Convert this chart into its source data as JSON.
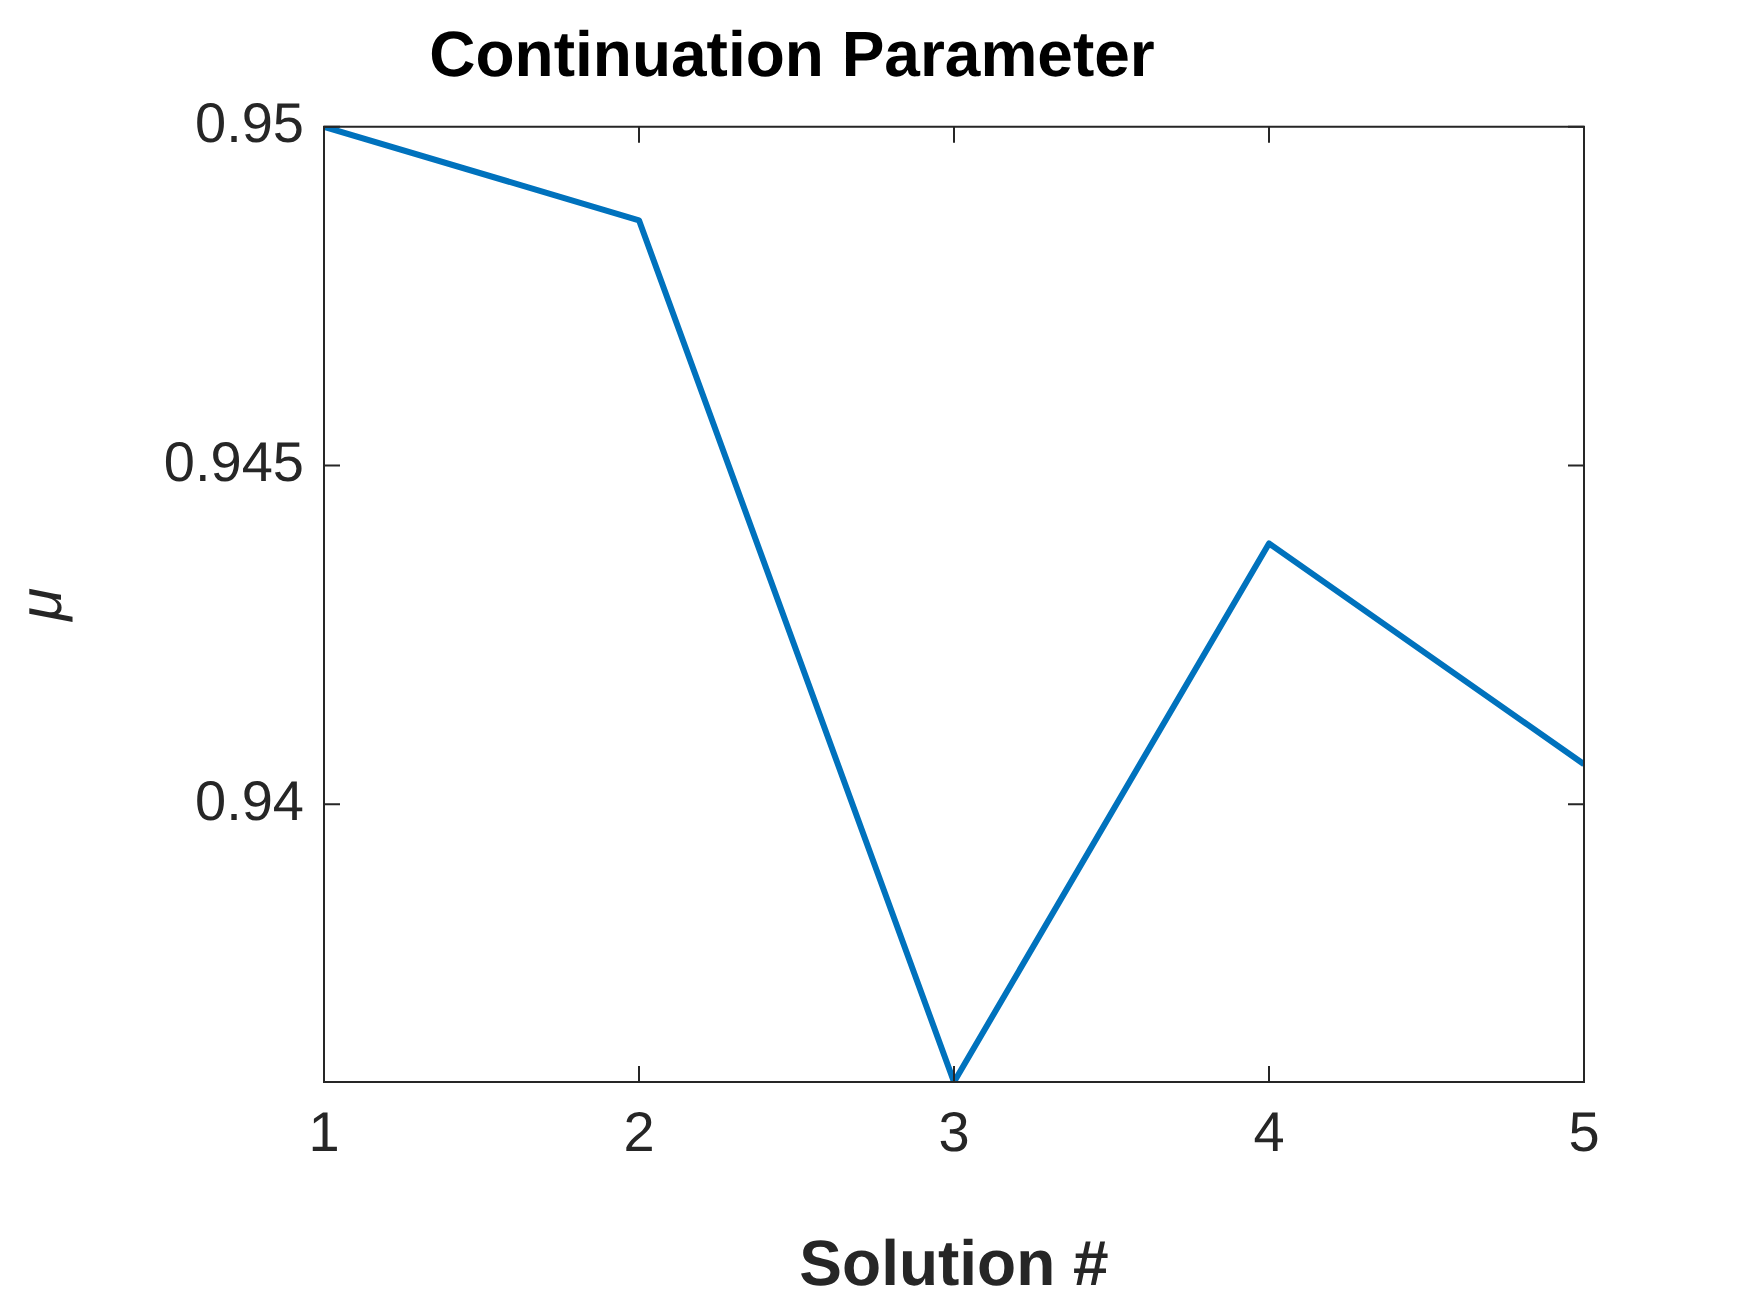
{
  "chart_data": {
    "type": "line",
    "title": "Continuation Parameter",
    "xlabel": "Solution #",
    "ylabel": "μ",
    "x": [
      1,
      2,
      3,
      4,
      5
    ],
    "series": [
      {
        "color": "#0072bd",
        "values": [
          0.95,
          0.94862,
          0.9359,
          0.94385,
          0.94059
        ]
      }
    ],
    "xlim": [
      1,
      5
    ],
    "xticks": [
      1,
      2,
      3,
      4,
      5
    ],
    "ylim": [
      0.9359,
      0.95
    ],
    "yticks": [
      0.94,
      0.945,
      0.95
    ],
    "grid": false,
    "legend": false,
    "marker": "none",
    "line_style": "solid"
  }
}
